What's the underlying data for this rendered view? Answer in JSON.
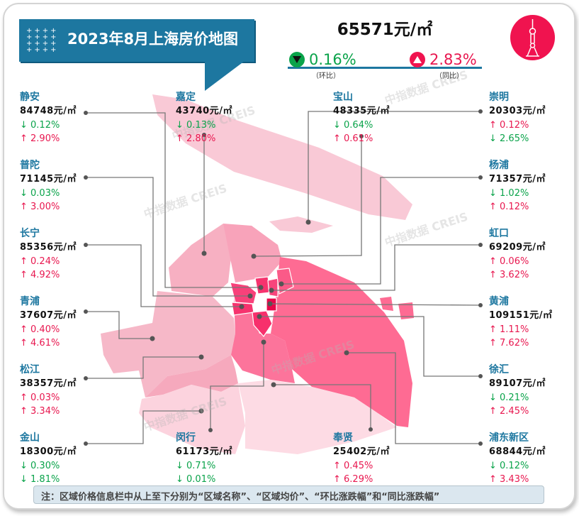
{
  "header": {
    "title": "2023年8月上海房价地图",
    "avg_price": "65571元/㎡",
    "mom": {
      "value": "0.16%",
      "direction": "down",
      "caption": "（环比）"
    },
    "yoy": {
      "value": "2.83%",
      "direction": "up",
      "caption": "（同比）"
    }
  },
  "colors": {
    "up": "#e8174f",
    "down": "#0aa34a",
    "brand": "#1d77a0"
  },
  "districts": [
    {
      "name": "静安",
      "price": "84748元/㎡",
      "mom": "↓ 0.12%",
      "mom_dir": "down",
      "yoy": "↑ 2.90%",
      "yoy_dir": "up"
    },
    {
      "name": "嘉定",
      "price": "43740元/㎡",
      "mom": "↓ 0.13%",
      "mom_dir": "down",
      "yoy": "↑ 2.80%",
      "yoy_dir": "up"
    },
    {
      "name": "宝山",
      "price": "48335元/㎡",
      "mom": "↓ 0.64%",
      "mom_dir": "down",
      "yoy": "↑ 0.61%",
      "yoy_dir": "up"
    },
    {
      "name": "崇明",
      "price": "20303元/㎡",
      "mom": "↑ 0.12%",
      "mom_dir": "up",
      "yoy": "↓ 2.65%",
      "yoy_dir": "down"
    },
    {
      "name": "普陀",
      "price": "71145元/㎡",
      "mom": "↓ 0.03%",
      "mom_dir": "down",
      "yoy": "↑ 3.00%",
      "yoy_dir": "up"
    },
    {
      "name": "杨浦",
      "price": "71357元/㎡",
      "mom": "↓ 1.02%",
      "mom_dir": "down",
      "yoy": "↑ 0.12%",
      "yoy_dir": "up"
    },
    {
      "name": "长宁",
      "price": "85356元/㎡",
      "mom": "↑ 0.24%",
      "mom_dir": "up",
      "yoy": "↑ 4.92%",
      "yoy_dir": "up"
    },
    {
      "name": "虹口",
      "price": "69209元/㎡",
      "mom": "↑ 0.06%",
      "mom_dir": "up",
      "yoy": "↑ 3.62%",
      "yoy_dir": "up"
    },
    {
      "name": "青浦",
      "price": "37607元/㎡",
      "mom": "↑ 0.40%",
      "mom_dir": "up",
      "yoy": "↑ 4.61%",
      "yoy_dir": "up"
    },
    {
      "name": "黄浦",
      "price": "109151元/㎡",
      "mom": "↑ 1.11%",
      "mom_dir": "up",
      "yoy": "↑ 7.62%",
      "yoy_dir": "up"
    },
    {
      "name": "松江",
      "price": "38357元/㎡",
      "mom": "↑ 0.03%",
      "mom_dir": "up",
      "yoy": "↑ 3.34%",
      "yoy_dir": "up"
    },
    {
      "name": "徐汇",
      "price": "89107元/㎡",
      "mom": "↓ 0.21%",
      "mom_dir": "down",
      "yoy": "↑ 2.45%",
      "yoy_dir": "up"
    },
    {
      "name": "金山",
      "price": "18300元/㎡",
      "mom": "↓ 0.30%",
      "mom_dir": "down",
      "yoy": "↓ 1.81%",
      "yoy_dir": "down"
    },
    {
      "name": "闵行",
      "price": "61173元/㎡",
      "mom": "↓ 0.71%",
      "mom_dir": "down",
      "yoy": "↓ 0.01%",
      "yoy_dir": "down"
    },
    {
      "name": "奉贤",
      "price": "25402元/㎡",
      "mom": "↑ 0.45%",
      "mom_dir": "up",
      "yoy": "↑ 6.29%",
      "yoy_dir": "up"
    },
    {
      "name": "浦东新区",
      "price": "68844元/㎡",
      "mom": "↓ 0.12%",
      "mom_dir": "down",
      "yoy": "↑ 3.43%",
      "yoy_dir": "up"
    }
  ],
  "watermark": "中指数据 CREIS",
  "note": "注：区域价格信息栏中从上至下分别为“区域名称”、“区域均价”、“环比涨跌幅”和“同比涨跌幅”"
}
